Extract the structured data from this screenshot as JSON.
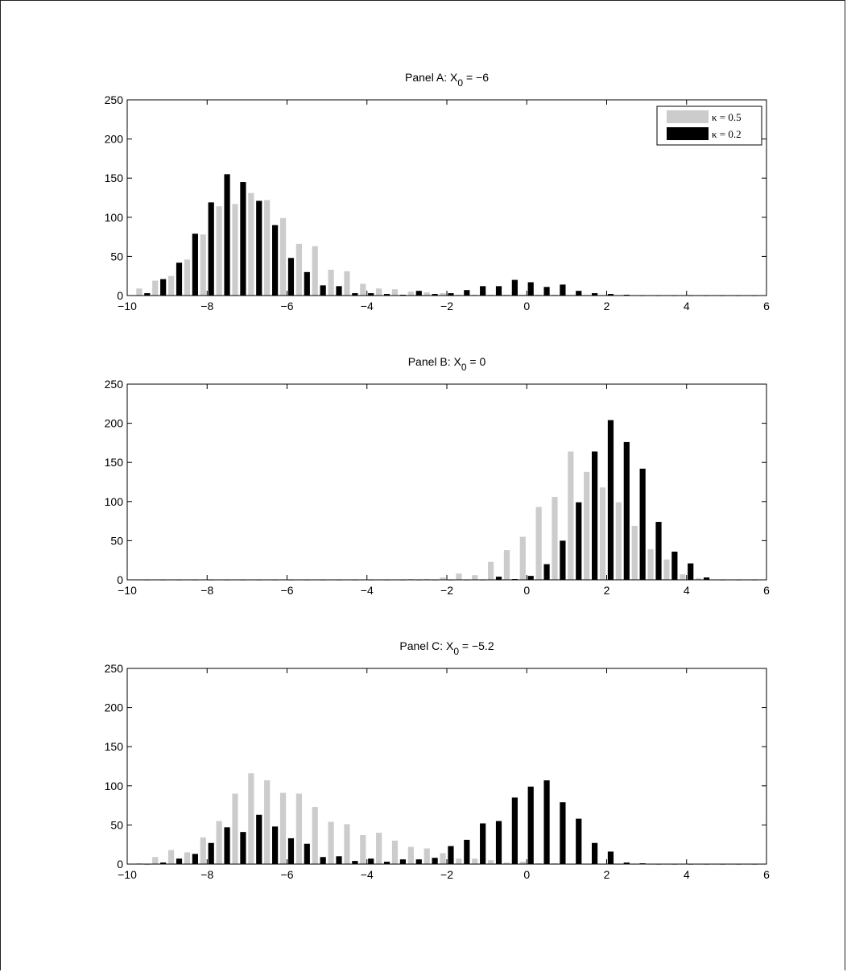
{
  "chart_data": [
    {
      "type": "bar",
      "title_main": "Panel A:  X",
      "title_sub": "0",
      "title_suffix": " = −6",
      "xlim": [
        -10,
        6
      ],
      "ylim": [
        0,
        250
      ],
      "xticks": [
        "−10",
        "−8",
        "−6",
        "−4",
        "−2",
        "0",
        "2",
        "4",
        "6"
      ],
      "yticks": [
        "0",
        "50",
        "100",
        "150",
        "200",
        "250"
      ],
      "legend_position": "top-right",
      "grid": false,
      "x": [
        -9.6,
        -9.2,
        -8.8,
        -8.4,
        -8.0,
        -7.6,
        -7.2,
        -6.8,
        -6.4,
        -6.0,
        -5.6,
        -5.2,
        -4.8,
        -4.4,
        -4.0,
        -3.6,
        -3.2,
        -2.8,
        -2.4,
        -2.0,
        -1.6,
        -1.2,
        -0.8,
        -0.4,
        0.0,
        0.4,
        0.8,
        1.2,
        1.6,
        2.0,
        2.4,
        2.8,
        3.2,
        3.6,
        4.0,
        4.4,
        4.8,
        5.2,
        5.6
      ],
      "series": [
        {
          "name": "κ = 0.5",
          "color": "#cccccc",
          "values": [
            9,
            19,
            25,
            46,
            78,
            114,
            117,
            131,
            122,
            99,
            66,
            63,
            33,
            31,
            15,
            9,
            8,
            5,
            4,
            3,
            1,
            1,
            1,
            1,
            1,
            1,
            1,
            0,
            0,
            0,
            0,
            0,
            0,
            0,
            0,
            0,
            0,
            0,
            0
          ]
        },
        {
          "name": "κ = 0.2",
          "color": "#000000",
          "values": [
            3,
            21,
            42,
            79,
            119,
            155,
            145,
            121,
            90,
            48,
            30,
            13,
            12,
            3,
            3,
            2,
            1,
            6,
            2,
            3,
            7,
            12,
            12,
            20,
            17,
            11,
            14,
            6,
            3,
            2,
            1,
            0,
            0,
            0,
            0,
            0,
            0,
            0,
            0
          ]
        }
      ]
    },
    {
      "type": "bar",
      "title_main": "Panel B:  X",
      "title_sub": "0",
      "title_suffix": " = 0",
      "xlim": [
        -10,
        6
      ],
      "ylim": [
        0,
        250
      ],
      "xticks": [
        "−10",
        "−8",
        "−6",
        "−4",
        "−2",
        "0",
        "2",
        "4",
        "6"
      ],
      "yticks": [
        "0",
        "50",
        "100",
        "150",
        "200",
        "250"
      ],
      "grid": false,
      "x": [
        -9.6,
        -9.2,
        -8.8,
        -8.4,
        -8.0,
        -7.6,
        -7.2,
        -6.8,
        -6.4,
        -6.0,
        -5.6,
        -5.2,
        -4.8,
        -4.4,
        -4.0,
        -3.6,
        -3.2,
        -2.8,
        -2.4,
        -2.0,
        -1.6,
        -1.2,
        -0.8,
        -0.4,
        0.0,
        0.4,
        0.8,
        1.2,
        1.6,
        2.0,
        2.4,
        2.8,
        3.2,
        3.6,
        4.0,
        4.4,
        4.8,
        5.2,
        5.6
      ],
      "series": [
        {
          "name": "κ = 0.5",
          "color": "#cccccc",
          "values": [
            0,
            0,
            0,
            0,
            0,
            0,
            0,
            0,
            0,
            0,
            0,
            0,
            0,
            0,
            0,
            0,
            0,
            1,
            1,
            3,
            8,
            6,
            23,
            38,
            55,
            93,
            106,
            164,
            138,
            118,
            99,
            69,
            39,
            26,
            7,
            2,
            0,
            0,
            0
          ]
        },
        {
          "name": "κ = 0.2",
          "color": "#000000",
          "values": [
            0,
            0,
            0,
            0,
            0,
            0,
            0,
            0,
            0,
            0,
            0,
            0,
            0,
            0,
            0,
            0,
            0,
            0,
            0,
            0,
            0,
            0,
            4,
            1,
            5,
            20,
            50,
            99,
            164,
            204,
            176,
            142,
            74,
            36,
            21,
            3,
            0,
            0,
            0
          ]
        }
      ]
    },
    {
      "type": "bar",
      "title_main": "Panel C:  X",
      "title_sub": "0",
      "title_suffix": " = −5.2",
      "xlim": [
        -10,
        6
      ],
      "ylim": [
        0,
        250
      ],
      "xticks": [
        "−10",
        "−8",
        "−6",
        "−4",
        "−2",
        "0",
        "2",
        "4",
        "6"
      ],
      "yticks": [
        "0",
        "50",
        "100",
        "150",
        "200",
        "250"
      ],
      "grid": false,
      "x": [
        -9.6,
        -9.2,
        -8.8,
        -8.4,
        -8.0,
        -7.6,
        -7.2,
        -6.8,
        -6.4,
        -6.0,
        -5.6,
        -5.2,
        -4.8,
        -4.4,
        -4.0,
        -3.6,
        -3.2,
        -2.8,
        -2.4,
        -2.0,
        -1.6,
        -1.2,
        -0.8,
        -0.4,
        0.0,
        0.4,
        0.8,
        1.2,
        1.6,
        2.0,
        2.4,
        2.8,
        3.2,
        3.6,
        4.0,
        4.4,
        4.8,
        5.2,
        5.6
      ],
      "series": [
        {
          "name": "κ = 0.5",
          "color": "#cccccc",
          "values": [
            1,
            9,
            18,
            15,
            34,
            55,
            90,
            116,
            107,
            91,
            90,
            73,
            54,
            51,
            37,
            40,
            30,
            22,
            20,
            14,
            7,
            7,
            5,
            2,
            3,
            1,
            1,
            0,
            0,
            0,
            0,
            0,
            0,
            0,
            0,
            0,
            0,
            0,
            0
          ]
        },
        {
          "name": "κ = 0.2",
          "color": "#000000",
          "values": [
            0,
            2,
            7,
            13,
            27,
            47,
            41,
            63,
            48,
            33,
            26,
            9,
            10,
            4,
            7,
            3,
            6,
            6,
            8,
            23,
            31,
            52,
            55,
            85,
            99,
            107,
            79,
            58,
            27,
            16,
            2,
            1,
            0,
            0,
            0,
            0,
            0,
            0,
            0
          ]
        }
      ]
    }
  ]
}
